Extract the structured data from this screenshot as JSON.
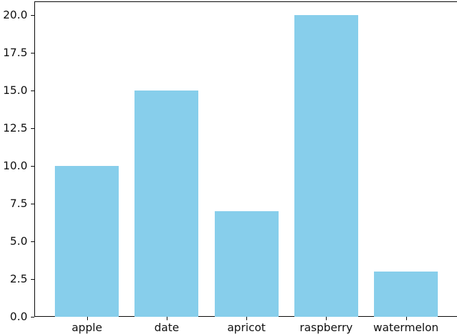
{
  "chart_data": {
    "type": "bar",
    "categories": [
      "apple",
      "date",
      "apricot",
      "raspberry",
      "watermelon"
    ],
    "values": [
      10,
      15,
      7,
      20,
      3
    ],
    "xlabel": "",
    "ylabel": "",
    "ylim": [
      0,
      20.9
    ],
    "yticks": [
      0.0,
      2.5,
      5.0,
      7.5,
      10.0,
      12.5,
      15.0,
      17.5,
      20.0
    ],
    "ytick_labels": [
      "0.0",
      "2.5",
      "5.0",
      "7.5",
      "10.0",
      "12.5",
      "15.0",
      "17.5",
      "20.0"
    ],
    "bar_color": "#87ceeb",
    "spine_color": "#000000",
    "grid": false,
    "legend_position": "none"
  }
}
